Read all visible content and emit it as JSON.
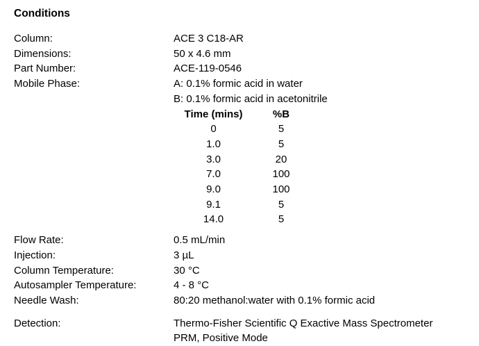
{
  "page": {
    "title": "Conditions"
  },
  "conditions": {
    "column": {
      "label": "Column:",
      "value": "ACE 3 C18-AR"
    },
    "dimensions": {
      "label": "Dimensions:",
      "value": "50 x 4.6 mm"
    },
    "part_number": {
      "label": "Part Number:",
      "value": "ACE-119-0546"
    },
    "mobile_phase": {
      "label": "Mobile Phase:",
      "value_a": "A: 0.1% formic acid in water",
      "value_b": "B: 0.1% formic acid in acetonitrile"
    },
    "flow_rate": {
      "label": "Flow Rate:",
      "value": "0.5 mL/min"
    },
    "injection": {
      "label": "Injection:",
      "value": "3 µL"
    },
    "column_temperature": {
      "label": "Column Temperature:",
      "value": "30 °C"
    },
    "autosampler_temperature": {
      "label": "Autosampler Temperature:",
      "value": "4 - 8 °C"
    },
    "needle_wash": {
      "label": "Needle Wash:",
      "value": "80:20 methanol:water with 0.1% formic acid"
    },
    "detection": {
      "label": "Detection:",
      "value_line1": "Thermo-Fisher Scientific Q Exactive Mass Spectrometer",
      "value_line2": "PRM, Positive Mode"
    }
  },
  "gradient_table": {
    "headers": {
      "time": "Time (mins)",
      "percent_b": "%B"
    },
    "rows": [
      {
        "time": "0",
        "percent_b": "5"
      },
      {
        "time": "1.0",
        "percent_b": "5"
      },
      {
        "time": "3.0",
        "percent_b": "20"
      },
      {
        "time": "7.0",
        "percent_b": "100"
      },
      {
        "time": "9.0",
        "percent_b": "100"
      },
      {
        "time": "9.1",
        "percent_b": "5"
      },
      {
        "time": "14.0",
        "percent_b": "5"
      }
    ]
  }
}
